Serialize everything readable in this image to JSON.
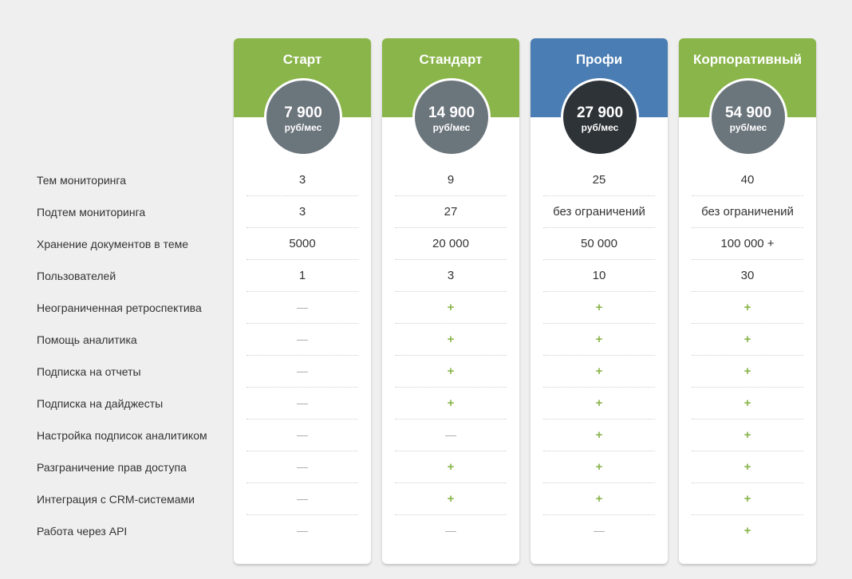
{
  "features": [
    "Тем мониторинга",
    "Подтем мониторинга",
    "Хранение документов в теме",
    "Пользователей",
    "Неограниченная ретроспектива",
    "Помощь аналитика",
    "Подписка на отчеты",
    "Подписка на дайджесты",
    "Настройка подписок аналитиком",
    "Разграничение прав доступа",
    "Интеграция с CRM-системами",
    "Работа через API"
  ],
  "colors": {
    "green_header": "#8ab54a",
    "blue_header": "#4a7db3",
    "circle_gray": "#6b757c",
    "circle_dark": "#2e3338",
    "plus": "#8ab54a",
    "dash": "#aaaaaa"
  },
  "plans": [
    {
      "name": "Старт",
      "price": "7 900",
      "unit": "руб/мес",
      "header_color": "#8ab54a",
      "circle_color": "#6b757c",
      "values": [
        "3",
        "3",
        "5000",
        "1",
        "—",
        "—",
        "—",
        "—",
        "—",
        "—",
        "—",
        "—"
      ]
    },
    {
      "name": "Стандарт",
      "price": "14 900",
      "unit": "руб/мес",
      "header_color": "#8ab54a",
      "circle_color": "#6b757c",
      "values": [
        "9",
        "27",
        "20 000",
        "3",
        "+",
        "+",
        "+",
        "+",
        "—",
        "+",
        "+",
        "—"
      ]
    },
    {
      "name": "Профи",
      "price": "27 900",
      "unit": "руб/мес",
      "header_color": "#4a7db3",
      "circle_color": "#2e3338",
      "values": [
        "25",
        "без ограничений",
        "50 000",
        "10",
        "+",
        "+",
        "+",
        "+",
        "+",
        "+",
        "+",
        "—"
      ]
    },
    {
      "name": "Корпоративный",
      "price": "54 900",
      "unit": "руб/мес",
      "header_color": "#8ab54a",
      "circle_color": "#6b757c",
      "values": [
        "40",
        "без ограничений",
        "100 000 +",
        "30",
        "+",
        "+",
        "+",
        "+",
        "+",
        "+",
        "+",
        "+"
      ]
    }
  ]
}
